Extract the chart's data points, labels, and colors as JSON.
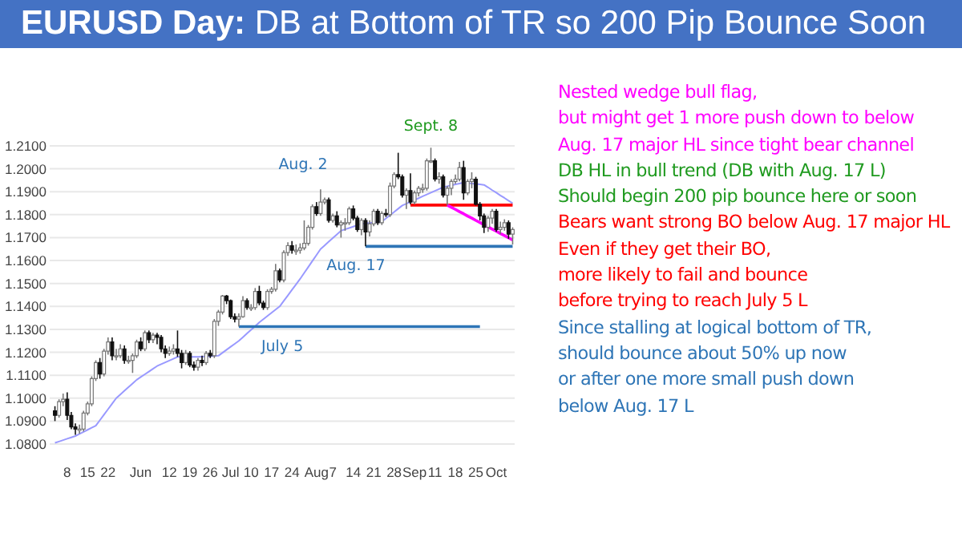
{
  "chart_data": {
    "type": "candlestick",
    "title": "EURUSD Day: DB at Bottom of TR so 200 Pip Bounce Soon",
    "categories": [
      null,
      null,
      null,
      "8",
      null,
      null,
      null,
      null,
      "15",
      null,
      null,
      null,
      null,
      "22",
      null,
      null,
      null,
      null,
      null,
      null,
      null,
      "Jun",
      null,
      null,
      null,
      null,
      null,
      null,
      "12",
      null,
      null,
      null,
      null,
      "19",
      null,
      null,
      null,
      null,
      "26",
      null,
      null,
      null,
      null,
      "Jul",
      null,
      null,
      null,
      null,
      "10",
      null,
      null,
      null,
      null,
      "17",
      null,
      null,
      null,
      null,
      "24",
      null,
      null,
      null,
      null,
      null,
      "Aug",
      null,
      null,
      null,
      "7",
      null,
      null,
      null,
      null,
      "14",
      null,
      null,
      null,
      null,
      "21",
      null,
      null,
      null,
      null,
      "28",
      null,
      null,
      null,
      null,
      "Sep",
      null,
      null,
      null,
      null,
      "11",
      null,
      null,
      null,
      null,
      "18",
      null,
      null,
      null,
      null,
      "25",
      null,
      null,
      null,
      null,
      "Oct",
      null,
      null,
      null,
      null
    ],
    "ohlc": [
      [
        1.0945,
        1.0965,
        1.09,
        1.0925
      ],
      [
        1.0925,
        1.0995,
        1.0915,
        1.0985
      ],
      [
        1.0985,
        1.102,
        1.0965,
        1.0995
      ],
      [
        1.0995,
        1.1025,
        1.0905,
        1.0925
      ],
      [
        1.0925,
        1.094,
        1.0865,
        1.0875
      ],
      [
        1.0875,
        1.089,
        1.084,
        1.0865
      ],
      [
        1.0865,
        1.0885,
        1.0845,
        1.0865
      ],
      [
        1.0865,
        1.0945,
        1.0855,
        1.0935
      ],
      [
        1.0935,
        1.0985,
        1.0925,
        1.0975
      ],
      [
        1.0975,
        1.1095,
        1.0965,
        1.1085
      ],
      [
        1.1085,
        1.1165,
        1.1075,
        1.1155
      ],
      [
        1.1155,
        1.1175,
        1.1085,
        1.1105
      ],
      [
        1.1105,
        1.1215,
        1.1095,
        1.1205
      ],
      [
        1.1205,
        1.1265,
        1.119,
        1.1245
      ],
      [
        1.1245,
        1.1265,
        1.1165,
        1.1185
      ],
      [
        1.1185,
        1.1215,
        1.1165,
        1.1185
      ],
      [
        1.1185,
        1.1235,
        1.1175,
        1.1215
      ],
      [
        1.1215,
        1.123,
        1.115,
        1.1165
      ],
      [
        1.1165,
        1.1185,
        1.115,
        1.1165
      ],
      [
        1.1165,
        1.1195,
        1.111,
        1.1185
      ],
      [
        1.1185,
        1.1255,
        1.1175,
        1.1245
      ],
      [
        1.1245,
        1.1265,
        1.1205,
        1.1215
      ],
      [
        1.1215,
        1.1295,
        1.1205,
        1.1285
      ],
      [
        1.1285,
        1.1295,
        1.124,
        1.1255
      ],
      [
        1.1255,
        1.1285,
        1.124,
        1.1275
      ],
      [
        1.1275,
        1.1285,
        1.1235,
        1.1265
      ],
      [
        1.1265,
        1.1275,
        1.12,
        1.1215
      ],
      [
        1.1215,
        1.123,
        1.1175,
        1.1195
      ],
      [
        1.1195,
        1.1225,
        1.1185,
        1.1205
      ],
      [
        1.1205,
        1.1235,
        1.119,
        1.1215
      ],
      [
        1.1215,
        1.1295,
        1.118,
        1.1195
      ],
      [
        1.1195,
        1.121,
        1.113,
        1.1155
      ],
      [
        1.1155,
        1.121,
        1.1145,
        1.1195
      ],
      [
        1.1195,
        1.1205,
        1.1135,
        1.1145
      ],
      [
        1.1145,
        1.116,
        1.112,
        1.1135
      ],
      [
        1.1135,
        1.1175,
        1.112,
        1.1165
      ],
      [
        1.1165,
        1.1185,
        1.114,
        1.1155
      ],
      [
        1.1155,
        1.1205,
        1.1145,
        1.1195
      ],
      [
        1.1195,
        1.121,
        1.1175,
        1.1185
      ],
      [
        1.1185,
        1.1345,
        1.1175,
        1.1335
      ],
      [
        1.1335,
        1.1385,
        1.1315,
        1.1375
      ],
      [
        1.1375,
        1.145,
        1.1365,
        1.1445
      ],
      [
        1.1445,
        1.145,
        1.141,
        1.1425
      ],
      [
        1.1425,
        1.143,
        1.1345,
        1.1355
      ],
      [
        1.1355,
        1.137,
        1.133,
        1.1345
      ],
      [
        1.1345,
        1.137,
        1.1312,
        1.1355
      ],
      [
        1.1355,
        1.1445,
        1.135,
        1.1425
      ],
      [
        1.1425,
        1.1435,
        1.1385,
        1.1395
      ],
      [
        1.1395,
        1.141,
        1.138,
        1.1395
      ],
      [
        1.1395,
        1.148,
        1.1385,
        1.1465
      ],
      [
        1.1465,
        1.149,
        1.1405,
        1.1415
      ],
      [
        1.1415,
        1.1425,
        1.1385,
        1.1395
      ],
      [
        1.1395,
        1.1475,
        1.1385,
        1.1465
      ],
      [
        1.1465,
        1.1485,
        1.1455,
        1.1475
      ],
      [
        1.1475,
        1.1585,
        1.1465,
        1.1555
      ],
      [
        1.1555,
        1.1565,
        1.1505,
        1.1515
      ],
      [
        1.1515,
        1.1645,
        1.1505,
        1.1635
      ],
      [
        1.1635,
        1.168,
        1.162,
        1.1665
      ],
      [
        1.1665,
        1.1685,
        1.163,
        1.1645
      ],
      [
        1.1645,
        1.167,
        1.1625,
        1.1645
      ],
      [
        1.1645,
        1.1675,
        1.163,
        1.1655
      ],
      [
        1.1655,
        1.1775,
        1.1645,
        1.1675
      ],
      [
        1.1675,
        1.1755,
        1.1665,
        1.1745
      ],
      [
        1.1745,
        1.1845,
        1.1735,
        1.1835
      ],
      [
        1.1835,
        1.1855,
        1.1795,
        1.1805
      ],
      [
        1.1805,
        1.191,
        1.1795,
        1.1855
      ],
      [
        1.1855,
        1.1875,
        1.1845,
        1.1865
      ],
      [
        1.1865,
        1.1875,
        1.1765,
        1.1775
      ],
      [
        1.1775,
        1.1805,
        1.1765,
        1.1795
      ],
      [
        1.1795,
        1.1815,
        1.1745,
        1.1755
      ],
      [
        1.1755,
        1.1775,
        1.17,
        1.1765
      ],
      [
        1.1765,
        1.1785,
        1.173,
        1.1765
      ],
      [
        1.1765,
        1.1835,
        1.1755,
        1.1825
      ],
      [
        1.1825,
        1.184,
        1.1775,
        1.1785
      ],
      [
        1.1785,
        1.1795,
        1.1725,
        1.1735
      ],
      [
        1.1735,
        1.1785,
        1.171,
        1.1775
      ],
      [
        1.1775,
        1.1785,
        1.1662,
        1.1725
      ],
      [
        1.1725,
        1.1775,
        1.1705,
        1.176
      ],
      [
        1.176,
        1.1825,
        1.175,
        1.1815
      ],
      [
        1.1815,
        1.1825,
        1.1755,
        1.1765
      ],
      [
        1.1765,
        1.1815,
        1.1755,
        1.1805
      ],
      [
        1.1805,
        1.1825,
        1.179,
        1.18
      ],
      [
        1.18,
        1.194,
        1.179,
        1.1925
      ],
      [
        1.1925,
        1.1985,
        1.1915,
        1.1975
      ],
      [
        1.1975,
        1.207,
        1.1955,
        1.1965
      ],
      [
        1.1965,
        1.1975,
        1.1875,
        1.1885
      ],
      [
        1.1885,
        1.1915,
        1.1825,
        1.1905
      ],
      [
        1.1905,
        1.198,
        1.1845,
        1.1855
      ],
      [
        1.1855,
        1.1905,
        1.1845,
        1.1895
      ],
      [
        1.1895,
        1.1925,
        1.188,
        1.1915
      ],
      [
        1.1915,
        1.1935,
        1.1895,
        1.1915
      ],
      [
        1.1915,
        1.2045,
        1.1905,
        1.2035
      ],
      [
        1.2035,
        1.2092,
        1.2025,
        1.2035
      ],
      [
        1.2035,
        1.2045,
        1.1945,
        1.1955
      ],
      [
        1.1955,
        1.1985,
        1.1935,
        1.1965
      ],
      [
        1.1965,
        1.1975,
        1.1875,
        1.1885
      ],
      [
        1.1885,
        1.1925,
        1.184,
        1.1915
      ],
      [
        1.1915,
        1.1955,
        1.1885,
        1.1945
      ],
      [
        1.1945,
        1.1975,
        1.1935,
        1.1955
      ],
      [
        1.1955,
        1.203,
        1.1945,
        1.2005
      ],
      [
        1.2005,
        1.2035,
        1.1865,
        1.1895
      ],
      [
        1.1895,
        1.1955,
        1.1885,
        1.1945
      ],
      [
        1.1945,
        1.1985,
        1.1915,
        1.1955
      ],
      [
        1.1955,
        1.1965,
        1.184,
        1.1845
      ],
      [
        1.1845,
        1.1855,
        1.1775,
        1.1795
      ],
      [
        1.1795,
        1.1805,
        1.172,
        1.1745
      ],
      [
        1.1745,
        1.1795,
        1.1725,
        1.1785
      ],
      [
        1.1785,
        1.1825,
        1.176,
        1.1815
      ],
      [
        1.1815,
        1.1825,
        1.1725,
        1.1735
      ],
      [
        1.1735,
        1.177,
        1.1715,
        1.1745
      ],
      [
        1.1745,
        1.178,
        1.173,
        1.1765
      ],
      [
        1.1765,
        1.1775,
        1.1695,
        1.1715
      ],
      [
        1.1715,
        1.1745,
        1.167,
        1.1735
      ]
    ],
    "series": [
      {
        "type": "line",
        "color": "#9999ff",
        "values": [
          1.0805,
          1.0811,
          1.0817,
          1.0823,
          1.0829,
          1.0835,
          1.0844,
          1.0853,
          1.0862,
          1.0871,
          1.088,
          1.0904,
          1.0928,
          1.0952,
          1.0976,
          1.1,
          1.1016,
          1.1032,
          1.1048,
          1.1064,
          1.108,
          1.1092,
          1.1104,
          1.1116,
          1.1128,
          1.114,
          1.1148,
          1.1156,
          1.1164,
          1.1172,
          1.118,
          1.118,
          1.118,
          1.118,
          1.118,
          1.118,
          1.1181,
          1.1182,
          1.1183,
          1.1184,
          1.1185,
          1.1198,
          1.1211,
          1.1224,
          1.1237,
          1.125,
          1.1266,
          1.1282,
          1.1298,
          1.1314,
          1.133,
          1.1344,
          1.1358,
          1.1372,
          1.1386,
          1.14,
          1.1424,
          1.1448,
          1.1472,
          1.1496,
          1.152,
          1.1546,
          1.1572,
          1.1598,
          1.1624,
          1.165,
          1.1666,
          1.1682,
          1.1698,
          1.1714,
          1.173,
          1.1736,
          1.1742,
          1.1748,
          1.1754,
          1.176,
          1.1762,
          1.1764,
          1.1766,
          1.1768,
          1.177,
          1.1784,
          1.1798,
          1.1812,
          1.1826,
          1.184,
          1.1848,
          1.1856,
          1.1864,
          1.1872,
          1.188,
          1.1888,
          1.1896,
          1.1904,
          1.1912,
          1.192,
          1.1924,
          1.1928,
          1.1932,
          1.1936,
          1.194,
          1.1938,
          1.1936,
          1.1934,
          1.1932,
          1.193,
          1.1919,
          1.1907,
          1.1896,
          1.1884,
          1.1873,
          1.1861,
          1.185
        ]
      },
      {
        "type": "line",
        "color": "#2e75b6",
        "values": [
          null,
          null,
          null,
          null,
          null,
          null,
          null,
          null,
          null,
          null,
          null,
          null,
          null,
          null,
          null,
          null,
          null,
          null,
          null,
          null,
          null,
          null,
          null,
          null,
          null,
          null,
          null,
          null,
          null,
          null,
          null,
          null,
          null,
          null,
          null,
          null,
          null,
          null,
          null,
          null,
          null,
          null,
          null,
          null,
          null,
          1.1312,
          1.1312,
          1.1312,
          1.1312,
          1.1312,
          1.1312,
          1.1312,
          1.1312,
          1.1312,
          1.1312,
          1.1312,
          1.1312,
          1.1312,
          1.1312,
          1.1312,
          1.1312,
          1.1312,
          1.1312,
          1.1312,
          1.1312,
          1.1312,
          1.1312,
          1.1312,
          1.1312,
          1.1312,
          1.1312,
          1.1312,
          1.1312,
          1.1312,
          1.1312,
          1.1312,
          1.1312,
          1.1312,
          1.1312,
          1.1312,
          1.1312,
          1.1312,
          1.1312,
          1.1312,
          1.1312,
          1.1312,
          1.1312,
          1.1312,
          1.1312,
          1.1312,
          1.1312,
          1.1312,
          1.1312,
          1.1312,
          1.1312,
          1.1312,
          1.1312,
          1.1312,
          1.1312,
          1.1312,
          1.1312,
          1.1312,
          1.1312,
          1.1312,
          1.1312,
          null,
          null,
          null,
          null,
          null,
          null,
          null,
          null
        ]
      },
      {
        "type": "line",
        "color": "#2e75b6",
        "values": [
          null,
          null,
          null,
          null,
          null,
          null,
          null,
          null,
          null,
          null,
          null,
          null,
          null,
          null,
          null,
          null,
          null,
          null,
          null,
          null,
          null,
          null,
          null,
          null,
          null,
          null,
          null,
          null,
          null,
          null,
          null,
          null,
          null,
          null,
          null,
          null,
          null,
          null,
          null,
          null,
          null,
          null,
          null,
          null,
          null,
          null,
          null,
          null,
          null,
          null,
          null,
          null,
          null,
          null,
          null,
          null,
          null,
          null,
          null,
          null,
          null,
          null,
          null,
          null,
          null,
          null,
          null,
          null,
          null,
          null,
          null,
          null,
          null,
          null,
          null,
          null,
          1.1662,
          1.1662,
          1.1662,
          1.1662,
          1.1662,
          1.1662,
          1.1662,
          1.1662,
          1.1662,
          1.1662,
          1.1662,
          1.1662,
          1.1662,
          1.1662,
          1.1662,
          1.1662,
          1.1662,
          1.1662,
          1.1662,
          1.1662,
          1.1662,
          1.1662,
          1.1662,
          1.1662,
          1.1662,
          1.1662,
          1.1662,
          1.1662,
          1.1662,
          1.1662,
          1.1662,
          1.1662,
          1.1662,
          1.1662,
          1.1662,
          1.1662,
          1.1662
        ]
      },
      {
        "type": "line",
        "color": "#ff0000",
        "values": [
          null,
          null,
          null,
          null,
          null,
          null,
          null,
          null,
          null,
          null,
          null,
          null,
          null,
          null,
          null,
          null,
          null,
          null,
          null,
          null,
          null,
          null,
          null,
          null,
          null,
          null,
          null,
          null,
          null,
          null,
          null,
          null,
          null,
          null,
          null,
          null,
          null,
          null,
          null,
          null,
          null,
          null,
          null,
          null,
          null,
          null,
          null,
          null,
          null,
          null,
          null,
          null,
          null,
          null,
          null,
          null,
          null,
          null,
          null,
          null,
          null,
          null,
          null,
          null,
          null,
          null,
          null,
          null,
          null,
          null,
          null,
          null,
          null,
          null,
          null,
          null,
          null,
          null,
          null,
          null,
          null,
          null,
          null,
          null,
          null,
          null,
          null,
          1.1842,
          1.1842,
          1.1842,
          1.1842,
          1.1842,
          1.1842,
          1.1842,
          1.1842,
          1.1842,
          1.1842,
          1.1842,
          1.1842,
          1.1842,
          1.1842,
          1.1842,
          1.1842,
          1.1842,
          1.1842,
          1.1842,
          1.1842,
          1.1842,
          1.1842,
          1.1842,
          1.1842,
          1.1842,
          1.1842
        ]
      },
      {
        "type": "line",
        "color": "#ff00ff",
        "values": [
          null,
          null,
          null,
          null,
          null,
          null,
          null,
          null,
          null,
          null,
          null,
          null,
          null,
          null,
          null,
          null,
          null,
          null,
          null,
          null,
          null,
          null,
          null,
          null,
          null,
          null,
          null,
          null,
          null,
          null,
          null,
          null,
          null,
          null,
          null,
          null,
          null,
          null,
          null,
          null,
          null,
          null,
          null,
          null,
          null,
          null,
          null,
          null,
          null,
          null,
          null,
          null,
          null,
          null,
          null,
          null,
          null,
          null,
          null,
          null,
          null,
          null,
          null,
          null,
          null,
          null,
          null,
          null,
          null,
          null,
          null,
          null,
          null,
          null,
          null,
          null,
          null,
          null,
          null,
          null,
          null,
          null,
          null,
          null,
          null,
          null,
          null,
          null,
          null,
          null,
          null,
          null,
          null,
          null,
          null,
          null,
          1.1842,
          1.1832,
          1.1823,
          1.1813,
          1.1804,
          1.1794,
          1.1785,
          1.1775,
          1.1766,
          1.1756,
          1.1747,
          1.1737,
          1.1728,
          1.1718,
          1.1709,
          1.1699,
          1.169
        ]
      }
    ],
    "ylim": [
      1.08,
      1.21
    ],
    "yticks": [
      {
        "value": 1.08,
        "label": "1.0800"
      },
      {
        "value": 1.09,
        "label": "1.0900"
      },
      {
        "value": 1.1,
        "label": "1.1000"
      },
      {
        "value": 1.11,
        "label": "1.1100"
      },
      {
        "value": 1.12,
        "label": "1.1200"
      },
      {
        "value": 1.13,
        "label": "1.1300"
      },
      {
        "value": 1.14,
        "label": "1.1400"
      },
      {
        "value": 1.15,
        "label": "1.1500"
      },
      {
        "value": 1.16,
        "label": "1.1600"
      },
      {
        "value": 1.17,
        "label": "1.1700"
      },
      {
        "value": 1.18,
        "label": "1.1800"
      },
      {
        "value": 1.19,
        "label": "1.1900"
      },
      {
        "value": 1.2,
        "label": "1.2000"
      },
      {
        "value": 1.21,
        "label": "1.2100"
      }
    ],
    "grid": "y",
    "marker": "none",
    "annotations": [
      {
        "text": "July 5",
        "y": 1.1312
      },
      "Aug. 2",
      "Aug. 17",
      {
        "text": "Sept. 8",
        "y": 1.2092
      },
      "Nested wedge bull flag,",
      "but might get 1 more push down to below",
      "Aug. 17 major HL since tight bear channel",
      "DB HL in bull trend (DB with Aug. 17 L)",
      "Should begin 200 pip bounce here or soon",
      "Bears want strong BO below Aug. 17 major HL",
      "Even if they get their BO,",
      "more likely to fail and bounce",
      "before trying to reach July 5 L",
      "Since stalling at logical bottom of TR,",
      "should bounce about 50% up now",
      "or after one more small push down",
      "below Aug. 17 L"
    ]
  }
}
